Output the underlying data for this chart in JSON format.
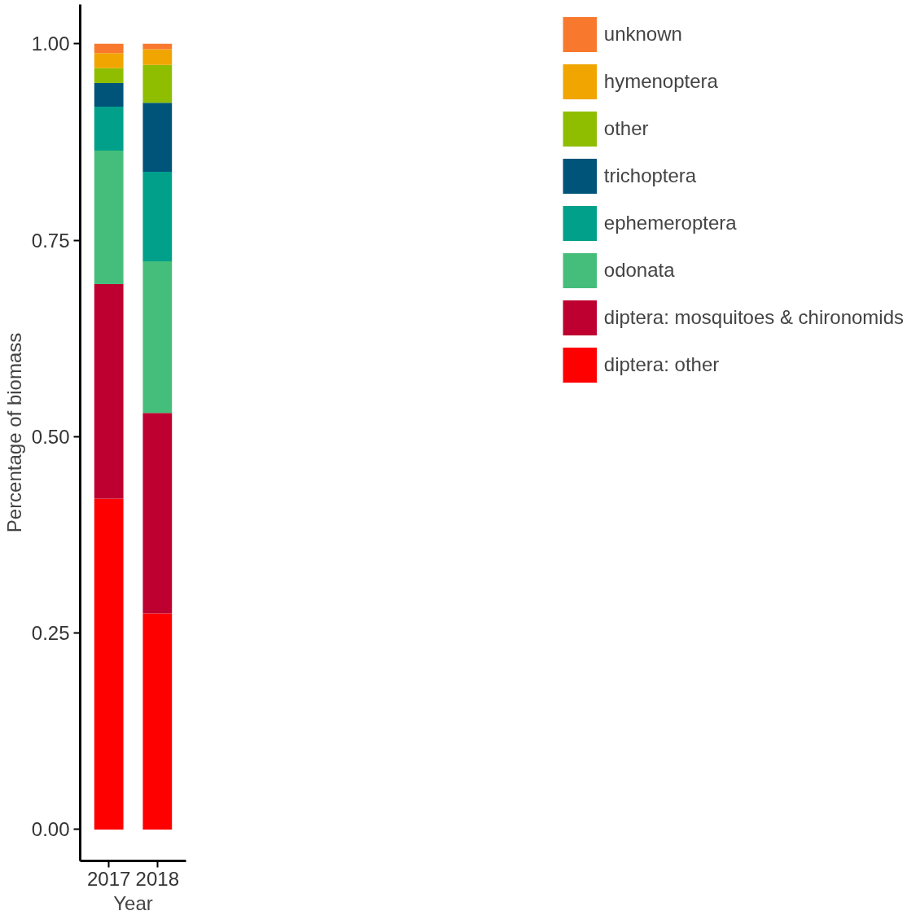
{
  "chart_data": {
    "type": "bar",
    "stacked": true,
    "xlabel": "Year",
    "ylabel": "Percentage of biomass",
    "categories": [
      "2017",
      "2018"
    ],
    "series": [
      {
        "name": "diptera: other",
        "color": "#ff0000",
        "values": [
          0.421,
          0.275
        ]
      },
      {
        "name": "diptera: mosquitoes & chironomids",
        "color": "#be0030",
        "values": [
          0.273,
          0.255
        ]
      },
      {
        "name": "odonata",
        "color": "#46be7b",
        "values": [
          0.17,
          0.193
        ]
      },
      {
        "name": "ephemeroptera",
        "color": "#00a08a",
        "values": [
          0.056,
          0.114
        ]
      },
      {
        "name": "trichoptera",
        "color": "#005479",
        "values": [
          0.03,
          0.088
        ]
      },
      {
        "name": "other",
        "color": "#8fbe00",
        "values": [
          0.019,
          0.048
        ]
      },
      {
        "name": "hymenoptera",
        "color": "#f0a500",
        "values": [
          0.019,
          0.02
        ]
      },
      {
        "name": "unknown",
        "color": "#f8792d",
        "values": [
          0.012,
          0.007
        ]
      }
    ],
    "ylim": [
      -0.04,
      1.05
    ],
    "yticks": [
      {
        "value": 0,
        "label": "0.00"
      },
      {
        "value": 0.25,
        "label": "0.25"
      },
      {
        "value": 0.5,
        "label": "0.50"
      },
      {
        "value": 0.75,
        "label": "0.75"
      },
      {
        "value": 1,
        "label": "1.00"
      }
    ],
    "legend": "right",
    "grid": false
  }
}
